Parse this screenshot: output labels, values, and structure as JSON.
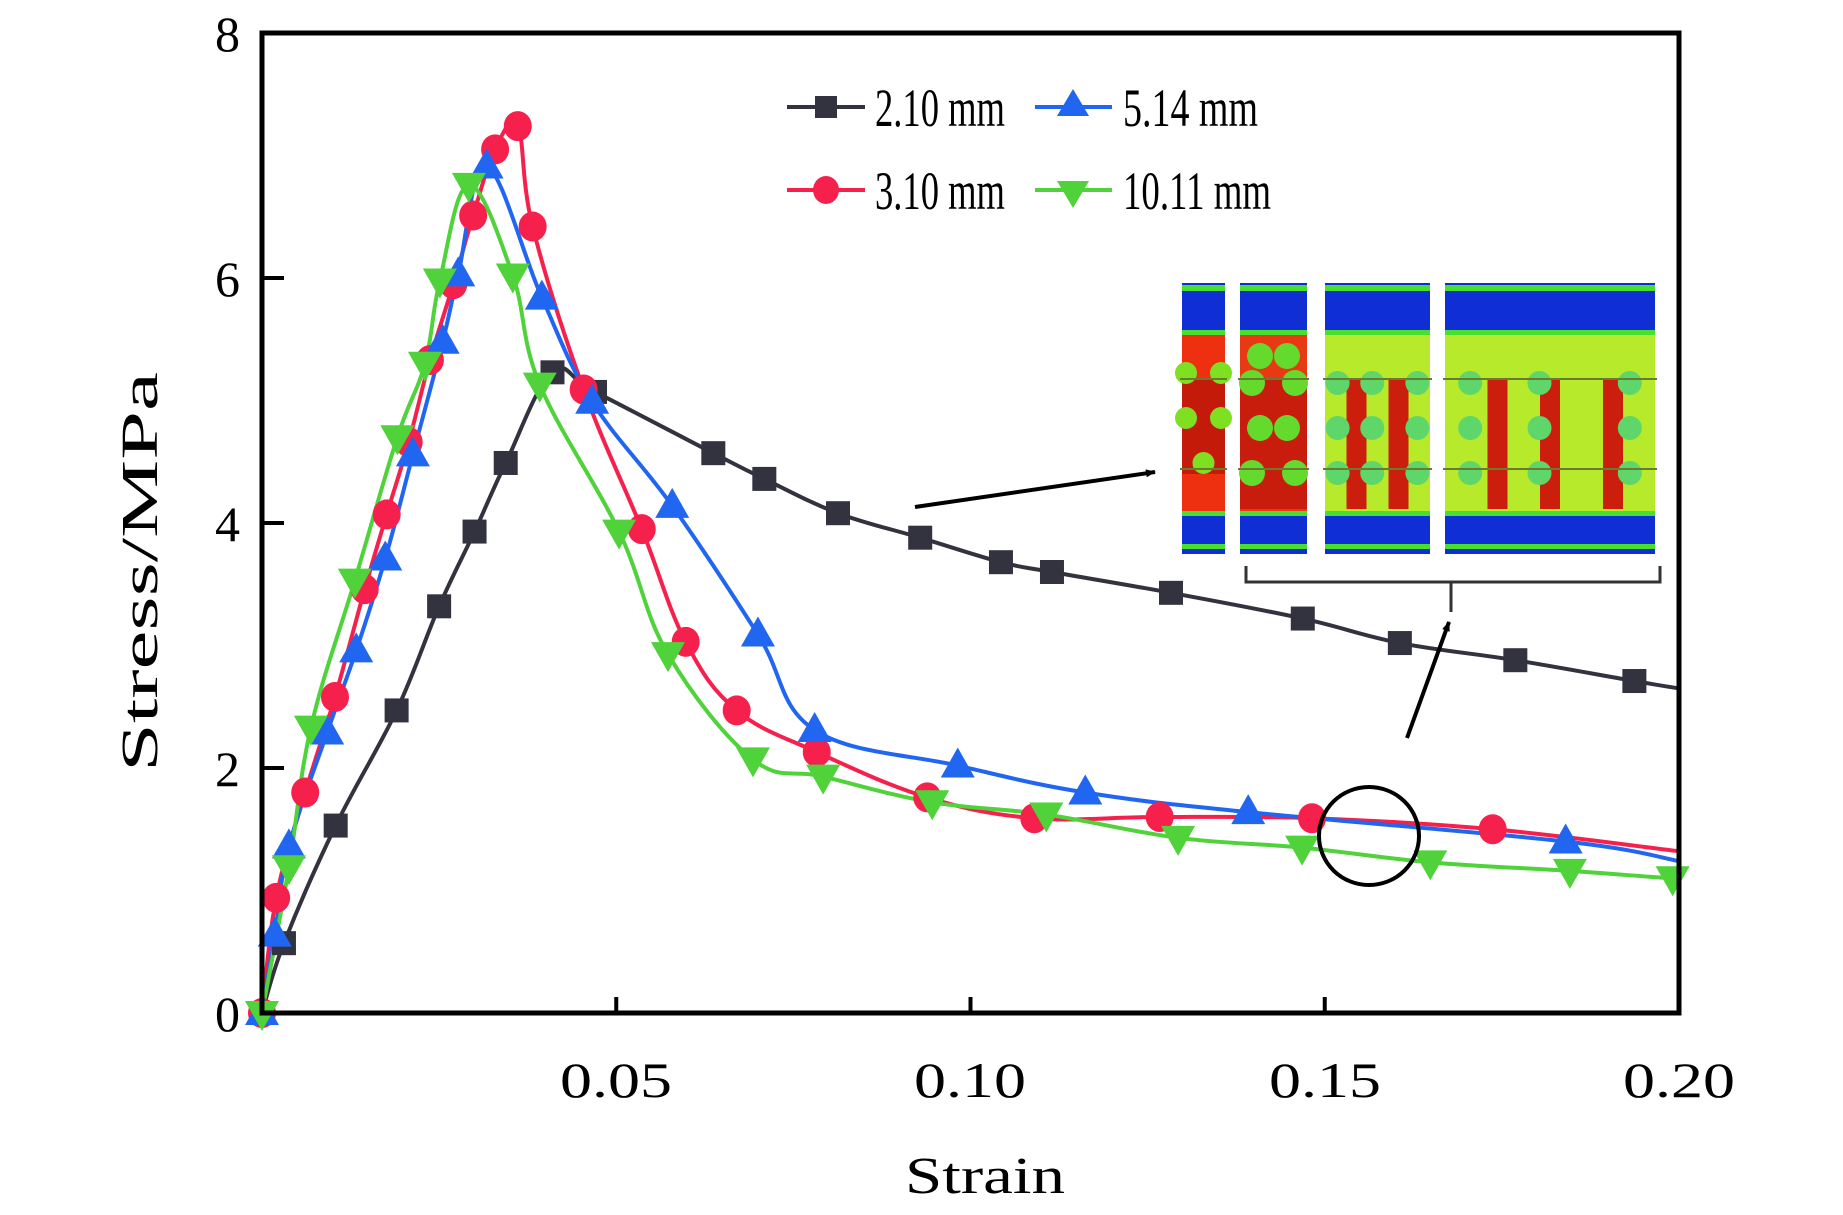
{
  "chart_data": {
    "type": "line",
    "title": "",
    "xlabel": "Strain",
    "ylabel": "Stress/MPa",
    "xlim": [
      0,
      0.2
    ],
    "ylim": [
      0,
      8
    ],
    "xticks": [
      0.05,
      0.1,
      0.15,
      0.2
    ],
    "xtick_labels": [
      "0.05",
      "0.10",
      "0.15",
      "0.20"
    ],
    "yticks": [
      0,
      2,
      4,
      6,
      8
    ],
    "ytick_labels": [
      "0",
      "2",
      "4",
      "6",
      "8"
    ],
    "grid": false,
    "legend_position": "top-right",
    "legend_columns": 2,
    "series": [
      {
        "name": "2.10 mm",
        "color": "#33323f",
        "marker": "square",
        "line_points": [
          [
            0,
            0
          ],
          [
            0.0031,
            0.57
          ],
          [
            0.0104,
            1.53
          ],
          [
            0.019,
            2.47
          ],
          [
            0.025,
            3.32
          ],
          [
            0.03,
            3.93
          ],
          [
            0.0344,
            4.49
          ],
          [
            0.041,
            5.23
          ],
          [
            0.047,
            5.07
          ],
          [
            0.0637,
            4.57
          ],
          [
            0.0709,
            4.36
          ],
          [
            0.0813,
            4.08
          ],
          [
            0.0929,
            3.88
          ],
          [
            0.1043,
            3.68
          ],
          [
            0.1115,
            3.6
          ],
          [
            0.1283,
            3.43
          ],
          [
            0.1469,
            3.22
          ],
          [
            0.1606,
            3.02
          ],
          [
            0.1769,
            2.88
          ],
          [
            0.1937,
            2.71
          ],
          [
            0.2,
            2.65
          ]
        ],
        "markers": [
          [
            0,
            0
          ],
          [
            0.0031,
            0.57
          ],
          [
            0.0104,
            1.53
          ],
          [
            0.019,
            2.47
          ],
          [
            0.025,
            3.32
          ],
          [
            0.03,
            3.93
          ],
          [
            0.0344,
            4.49
          ],
          [
            0.041,
            5.23
          ],
          [
            0.047,
            5.07
          ],
          [
            0.0637,
            4.57
          ],
          [
            0.0709,
            4.36
          ],
          [
            0.0813,
            4.08
          ],
          [
            0.0929,
            3.88
          ],
          [
            0.1043,
            3.68
          ],
          [
            0.1115,
            3.6
          ],
          [
            0.1283,
            3.43
          ],
          [
            0.1469,
            3.22
          ],
          [
            0.1606,
            3.02
          ],
          [
            0.1769,
            2.88
          ],
          [
            0.1937,
            2.71
          ]
        ]
      },
      {
        "name": "3.10 mm",
        "color": "#f5204c",
        "marker": "circle",
        "line_points": [
          [
            0,
            0
          ],
          [
            0.002,
            0.94
          ],
          [
            0.0061,
            1.8
          ],
          [
            0.0103,
            2.58
          ],
          [
            0.0145,
            3.46
          ],
          [
            0.0176,
            4.07
          ],
          [
            0.0207,
            4.66
          ],
          [
            0.0237,
            5.33
          ],
          [
            0.027,
            5.95
          ],
          [
            0.0298,
            6.51
          ],
          [
            0.0329,
            7.05
          ],
          [
            0.0361,
            7.24
          ],
          [
            0.0382,
            6.42
          ],
          [
            0.0454,
            5.09
          ],
          [
            0.0536,
            3.95
          ],
          [
            0.0598,
            3.03
          ],
          [
            0.067,
            2.47
          ],
          [
            0.0783,
            2.13
          ],
          [
            0.0939,
            1.76
          ],
          [
            0.109,
            1.59
          ],
          [
            0.1267,
            1.6
          ],
          [
            0.1482,
            1.59
          ],
          [
            0.1737,
            1.5
          ],
          [
            0.2,
            1.32
          ]
        ],
        "markers": [
          [
            0,
            0
          ],
          [
            0.002,
            0.94
          ],
          [
            0.0061,
            1.8
          ],
          [
            0.0103,
            2.58
          ],
          [
            0.0145,
            3.46
          ],
          [
            0.0176,
            4.07
          ],
          [
            0.0207,
            4.66
          ],
          [
            0.0237,
            5.33
          ],
          [
            0.027,
            5.95
          ],
          [
            0.0298,
            6.51
          ],
          [
            0.0329,
            7.05
          ],
          [
            0.0361,
            7.24
          ],
          [
            0.0382,
            6.42
          ],
          [
            0.0454,
            5.09
          ],
          [
            0.0536,
            3.95
          ],
          [
            0.0598,
            3.03
          ],
          [
            0.067,
            2.47
          ],
          [
            0.0783,
            2.13
          ],
          [
            0.0939,
            1.76
          ],
          [
            0.109,
            1.59
          ],
          [
            0.1267,
            1.6
          ],
          [
            0.1482,
            1.59
          ],
          [
            0.1737,
            1.5
          ]
        ]
      },
      {
        "name": "5.14 mm",
        "color": "#2166f0",
        "marker": "triangle-up",
        "line_points": [
          [
            0,
            0
          ],
          [
            0.0018,
            0.64
          ],
          [
            0.0038,
            1.36
          ],
          [
            0.0092,
            2.29
          ],
          [
            0.0133,
            2.96
          ],
          [
            0.0174,
            3.71
          ],
          [
            0.0213,
            4.56
          ],
          [
            0.0255,
            5.48
          ],
          [
            0.0277,
            6.03
          ],
          [
            0.0317,
            6.91
          ],
          [
            0.0395,
            5.84
          ],
          [
            0.0466,
            4.99
          ],
          [
            0.0579,
            4.14
          ],
          [
            0.07,
            3.09
          ],
          [
            0.078,
            2.31
          ],
          [
            0.0982,
            2.02
          ],
          [
            0.1162,
            1.8
          ],
          [
            0.1392,
            1.64
          ],
          [
            0.184,
            1.4
          ],
          [
            0.2,
            1.24
          ]
        ],
        "markers": [
          [
            0,
            0
          ],
          [
            0.0018,
            0.64
          ],
          [
            0.0038,
            1.36
          ],
          [
            0.0092,
            2.29
          ],
          [
            0.0133,
            2.96
          ],
          [
            0.0174,
            3.71
          ],
          [
            0.0213,
            4.56
          ],
          [
            0.0255,
            5.48
          ],
          [
            0.0277,
            6.03
          ],
          [
            0.0317,
            6.91
          ],
          [
            0.0395,
            5.84
          ],
          [
            0.0466,
            4.99
          ],
          [
            0.0579,
            4.14
          ],
          [
            0.07,
            3.09
          ],
          [
            0.078,
            2.31
          ],
          [
            0.0982,
            2.02
          ],
          [
            0.1162,
            1.8
          ],
          [
            0.1392,
            1.64
          ],
          [
            0.184,
            1.4
          ]
        ]
      },
      {
        "name": "10.11 mm",
        "color": "#4fd23a",
        "marker": "triangle-down",
        "line_points": [
          [
            0,
            0
          ],
          [
            0.0038,
            1.19
          ],
          [
            0.0069,
            2.33
          ],
          [
            0.0131,
            3.53
          ],
          [
            0.0191,
            4.7
          ],
          [
            0.023,
            5.3
          ],
          [
            0.0251,
            5.98
          ],
          [
            0.0292,
            6.76
          ],
          [
            0.0354,
            6.02
          ],
          [
            0.0392,
            5.13
          ],
          [
            0.0504,
            3.93
          ],
          [
            0.0573,
            2.93
          ],
          [
            0.0693,
            2.07
          ],
          [
            0.0792,
            1.93
          ],
          [
            0.0946,
            1.72
          ],
          [
            0.1107,
            1.62
          ],
          [
            0.1293,
            1.43
          ],
          [
            0.1468,
            1.35
          ],
          [
            0.1649,
            1.23
          ],
          [
            0.1846,
            1.16
          ],
          [
            0.1991,
            1.1
          ],
          [
            0.2,
            1.12
          ]
        ],
        "markers": [
          [
            0,
            0
          ],
          [
            0.0038,
            1.19
          ],
          [
            0.0069,
            2.33
          ],
          [
            0.0131,
            3.53
          ],
          [
            0.0191,
            4.7
          ],
          [
            0.023,
            5.3
          ],
          [
            0.0251,
            5.98
          ],
          [
            0.0292,
            6.76
          ],
          [
            0.0354,
            6.02
          ],
          [
            0.0392,
            5.13
          ],
          [
            0.0504,
            3.93
          ],
          [
            0.0573,
            2.93
          ],
          [
            0.0693,
            2.07
          ],
          [
            0.0792,
            1.93
          ],
          [
            0.0946,
            1.72
          ],
          [
            0.1107,
            1.62
          ],
          [
            0.1293,
            1.43
          ],
          [
            0.1468,
            1.35
          ],
          [
            0.1649,
            1.23
          ],
          [
            0.1846,
            1.16
          ],
          [
            0.1991,
            1.1
          ]
        ]
      }
    ],
    "annotations": [
      {
        "type": "arrow",
        "points_to": "inset-panel-first",
        "from_series": "2.10 mm",
        "at_strain": 0.092,
        "at_stress": 4.1
      },
      {
        "type": "circle",
        "center": [
          0.156,
          1.45
        ],
        "description": "region of 3.10/5.14/10.11 mm curves"
      },
      {
        "type": "arrow",
        "from": "circle",
        "points_to": "inset-panels-bracket"
      },
      {
        "type": "inset_image",
        "description": "stress contour panels of specimens",
        "panel_count": 4,
        "colors": [
          "#0a2ad0",
          "#48e030",
          "#e8f020",
          "#f03010",
          "#c01808"
        ]
      }
    ]
  }
}
